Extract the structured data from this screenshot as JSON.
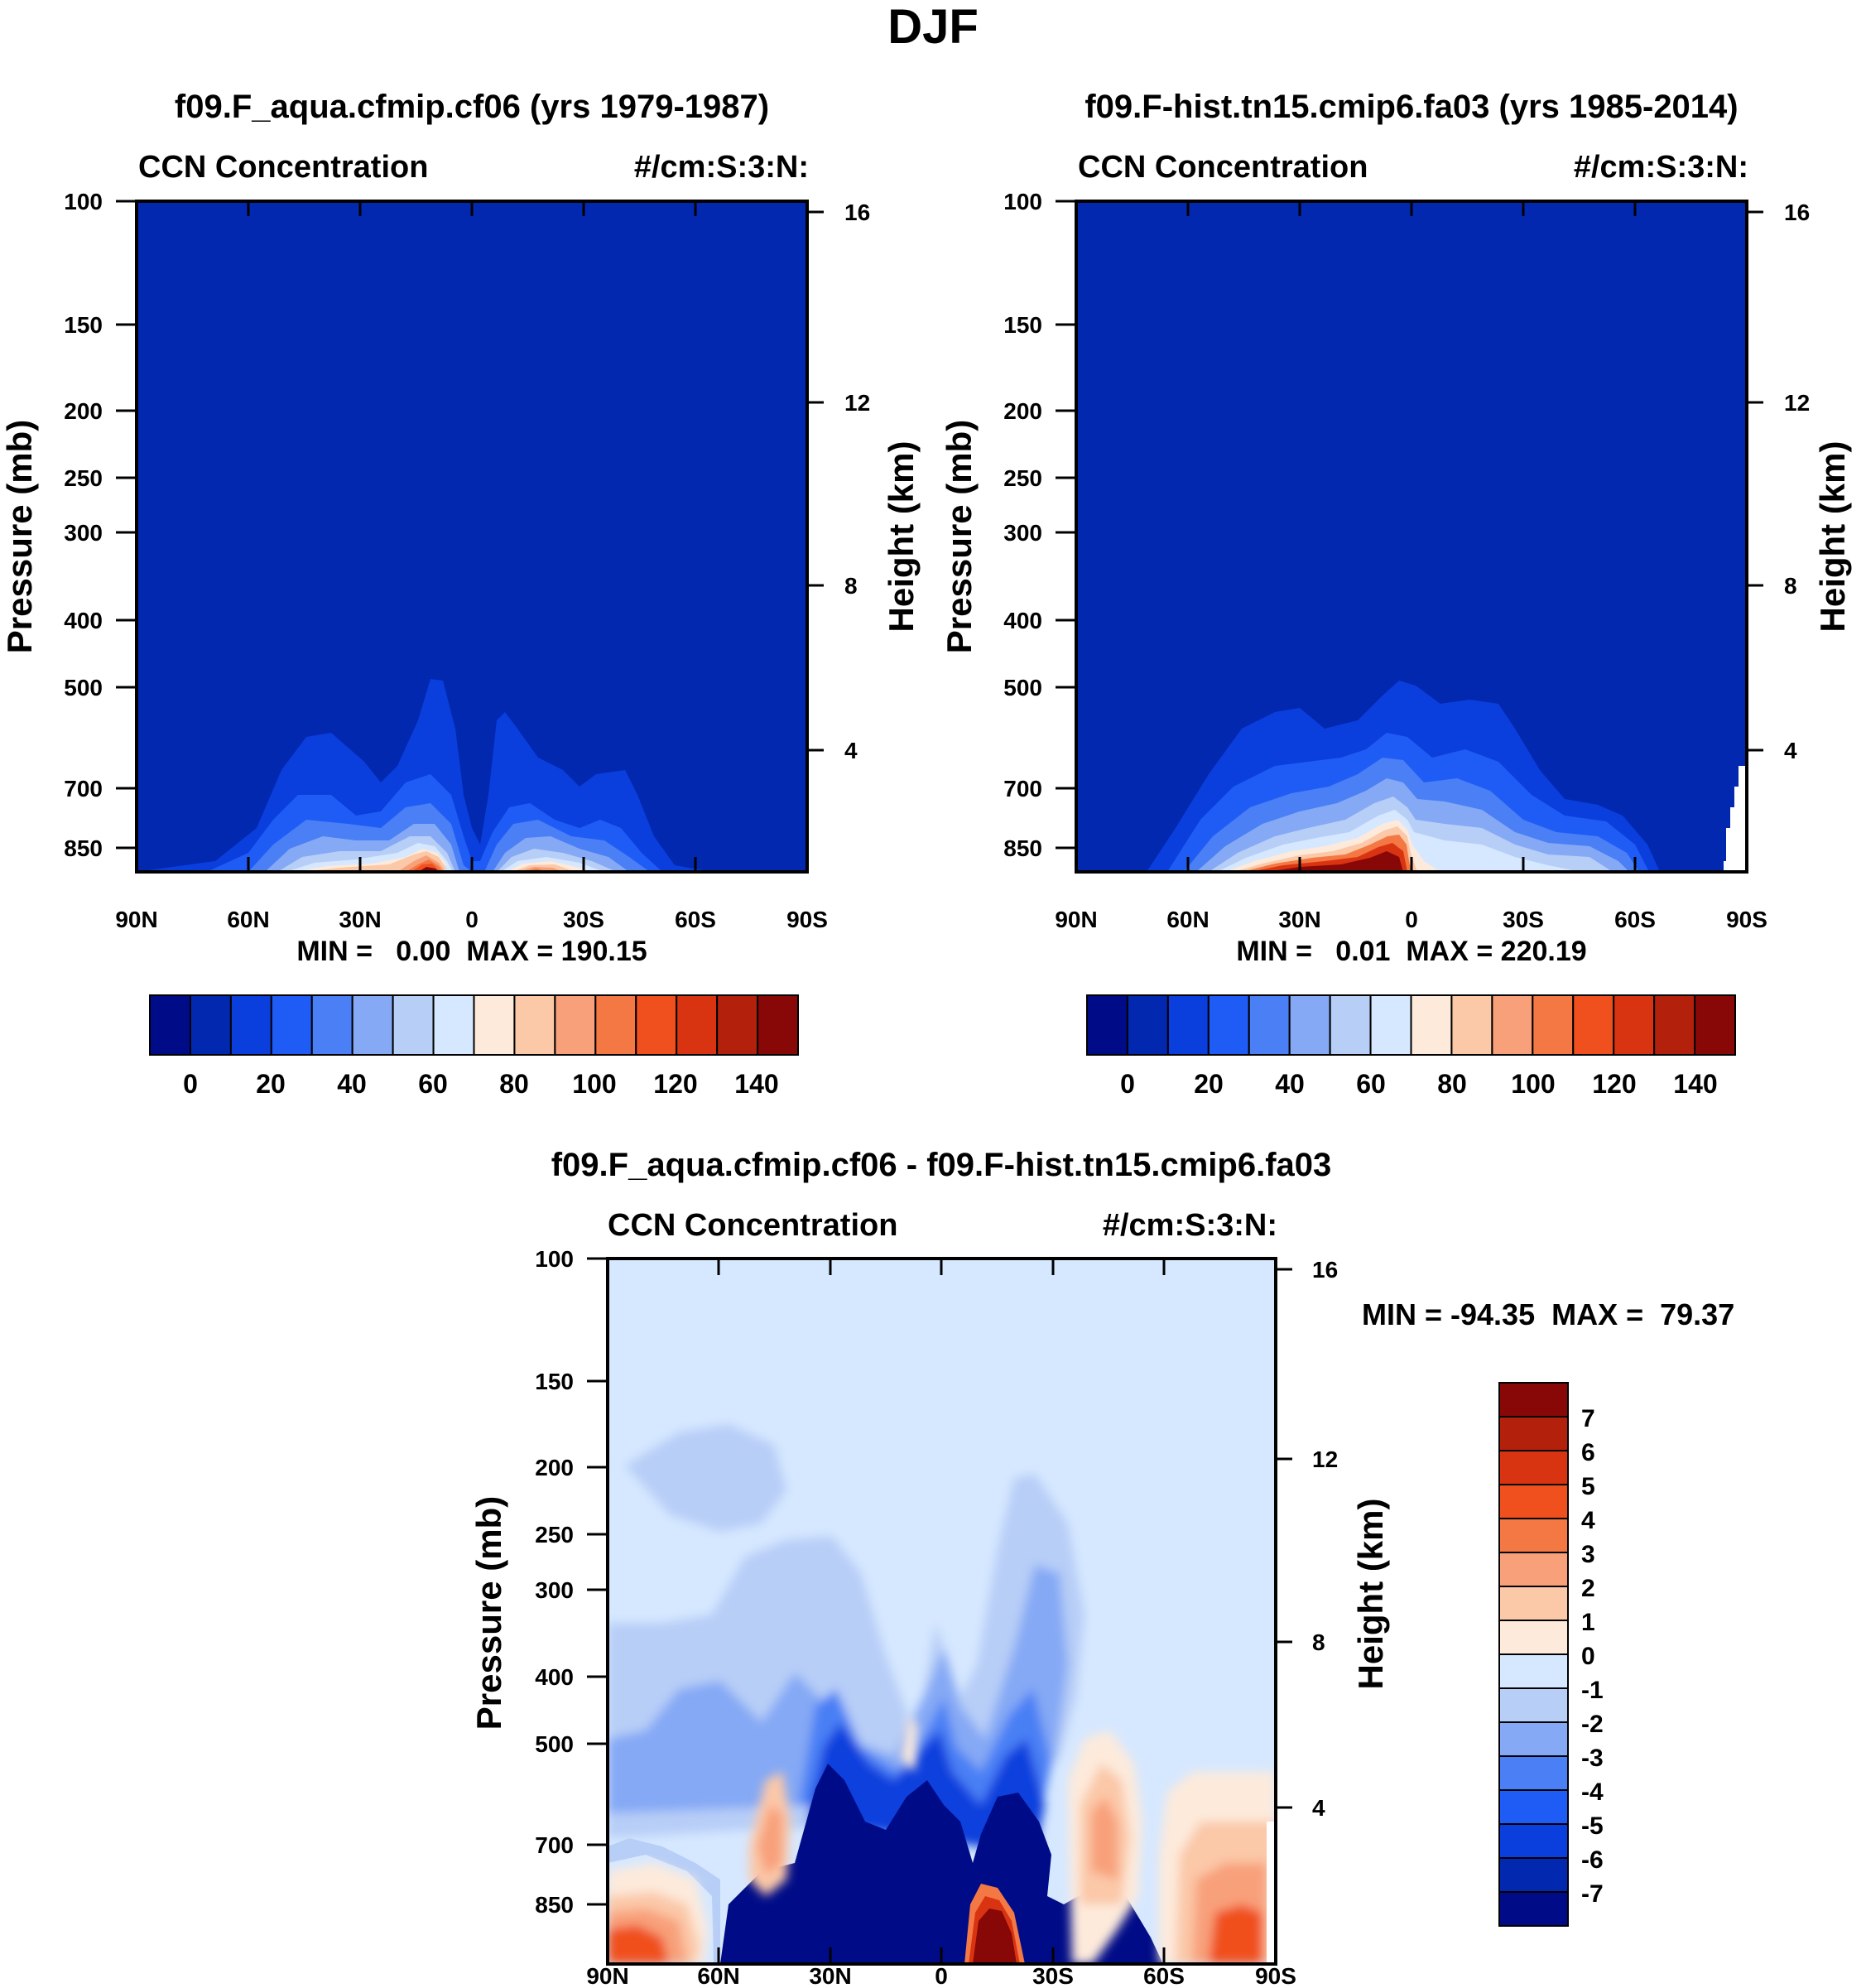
{
  "title": "DJF",
  "colors": {
    "background": "#0328b0",
    "diff_background": "#d6e8ff",
    "palette": [
      "#000c87",
      "#0328b0",
      "#0a3fdd",
      "#1f5cf5",
      "#4a7ff5",
      "#85a9f5",
      "#b7cef7",
      "#d6e8ff",
      "#fdeadb",
      "#fbc8a8",
      "#f8a07a",
      "#f47844",
      "#f0501e",
      "#d93412",
      "#b3210c",
      "#880707"
    ]
  },
  "chart_data": [
    {
      "type": "heatmap",
      "title": "f09.F_aqua.cfmip.cf06 (yrs 1979-1987)",
      "left_label": "CCN Concentration",
      "right_label": "#/cm:S:3:N:",
      "ylabel": "Pressure (mb)",
      "ylabel_right": "Height (km)",
      "x_ticks": [
        "90N",
        "60N",
        "30N",
        "0",
        "30S",
        "60S",
        "90S"
      ],
      "y_ticks": [
        "100",
        "150",
        "200",
        "250",
        "300",
        "400",
        "500",
        "700",
        "850"
      ],
      "y_ticks_right": [
        "16",
        "12",
        "8",
        "4"
      ],
      "stats": "MIN =   0.00  MAX = 190.15",
      "colorbar_labels": [
        "0",
        "20",
        "40",
        "60",
        "80",
        "100",
        "120",
        "140"
      ],
      "colorbar_levels": [
        -10,
        0,
        10,
        20,
        30,
        40,
        50,
        60,
        70,
        80,
        90,
        100,
        110,
        120,
        130,
        140,
        150
      ],
      "x": [
        -90,
        90
      ],
      "ylim": [
        1000,
        100
      ]
    },
    {
      "type": "heatmap",
      "title": "f09.F-hist.tn15.cmip6.fa03 (yrs 1985-2014)",
      "left_label": "CCN Concentration",
      "right_label": "#/cm:S:3:N:",
      "ylabel": "Pressure (mb)",
      "ylabel_right": "Height (km)",
      "x_ticks": [
        "90N",
        "60N",
        "30N",
        "0",
        "30S",
        "60S",
        "90S"
      ],
      "y_ticks": [
        "100",
        "150",
        "200",
        "250",
        "300",
        "400",
        "500",
        "700",
        "850"
      ],
      "y_ticks_right": [
        "16",
        "12",
        "8",
        "4"
      ],
      "stats": "MIN =   0.01  MAX = 220.19",
      "colorbar_labels": [
        "0",
        "20",
        "40",
        "60",
        "80",
        "100",
        "120",
        "140"
      ],
      "colorbar_levels": [
        -10,
        0,
        10,
        20,
        30,
        40,
        50,
        60,
        70,
        80,
        90,
        100,
        110,
        120,
        130,
        140,
        150
      ],
      "x": [
        -90,
        90
      ],
      "ylim": [
        1000,
        100
      ]
    },
    {
      "type": "heatmap",
      "title": "f09.F_aqua.cfmip.cf06 - f09.F-hist.tn15.cmip6.fa03",
      "left_label": "CCN Concentration",
      "right_label": "#/cm:S:3:N:",
      "ylabel": "Pressure (mb)",
      "ylabel_right": "Height (km)",
      "x_ticks": [
        "90N",
        "60N",
        "30N",
        "0",
        "30S",
        "60S",
        "90S"
      ],
      "y_ticks": [
        "100",
        "150",
        "200",
        "250",
        "300",
        "400",
        "500",
        "700",
        "850"
      ],
      "y_ticks_right": [
        "16",
        "12",
        "8",
        "4"
      ],
      "stats": "MIN = -94.35  MAX =  79.37",
      "colorbar_labels": [
        "7",
        "6",
        "5",
        "4",
        "3",
        "2",
        "1",
        "0",
        "-1",
        "-2",
        "-3",
        "-4",
        "-5",
        "-6",
        "-7"
      ],
      "x": [
        -90,
        90
      ],
      "ylim": [
        1000,
        100
      ]
    }
  ]
}
